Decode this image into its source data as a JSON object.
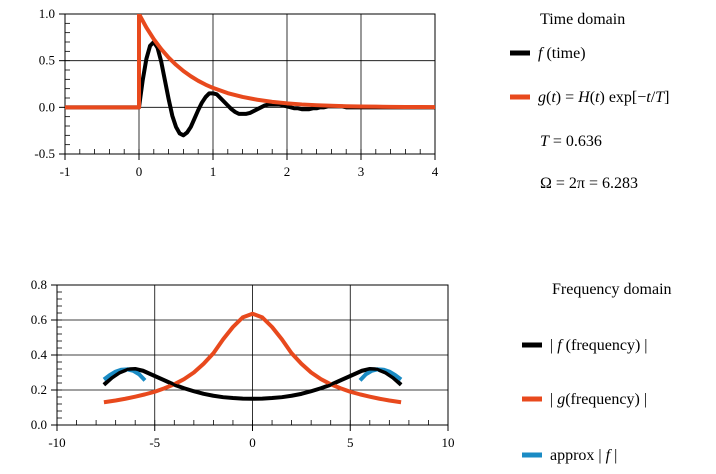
{
  "chart_data": [
    {
      "type": "line",
      "legend_title": "Time domain",
      "xlim": [
        -1,
        4
      ],
      "ylim": [
        -0.5,
        1.0
      ],
      "xticks": [
        -1,
        0,
        1,
        2,
        3,
        4
      ],
      "xtick_labels": [
        "-1",
        "0",
        "1",
        "2",
        "3",
        "4"
      ],
      "yticks": [
        -0.5,
        0.0,
        0.5,
        1.0
      ],
      "ytick_labels": [
        "-0.5",
        "0.0",
        "0.5",
        "1.0"
      ],
      "grid": true,
      "legend_position": "right",
      "parameters": {
        "T": 0.636,
        "Omega": 6.283
      },
      "param_labels": [
        "T = 0.636",
        "Ω = 2π = 6.283"
      ],
      "series": [
        {
          "name": "f (time)",
          "color": "#000000",
          "x": [
            -1,
            -0.5,
            0,
            0.05,
            0.1,
            0.15,
            0.2,
            0.25,
            0.3,
            0.35,
            0.4,
            0.45,
            0.5,
            0.55,
            0.6,
            0.65,
            0.7,
            0.75,
            0.8,
            0.85,
            0.9,
            0.95,
            1.0,
            1.05,
            1.1,
            1.15,
            1.2,
            1.25,
            1.3,
            1.35,
            1.4,
            1.45,
            1.5,
            1.55,
            1.6,
            1.65,
            1.7,
            1.75,
            1.8,
            1.85,
            1.9,
            1.95,
            2.0,
            2.05,
            2.1,
            2.15,
            2.2,
            2.25,
            2.3,
            2.35,
            2.4,
            2.45,
            2.5,
            2.55,
            2.6,
            2.65,
            2.7,
            2.75,
            2.8,
            2.85,
            2.9,
            2.95,
            3.0,
            3.1,
            3.2,
            3.3,
            3.4,
            3.5,
            3.6,
            3.7,
            3.8,
            3.9,
            4.0
          ],
          "y": [
            0,
            0,
            0,
            0.29,
            0.52,
            0.66,
            0.7,
            0.64,
            0.49,
            0.29,
            0.09,
            -0.09,
            -0.21,
            -0.28,
            -0.3,
            -0.27,
            -0.21,
            -0.12,
            -0.03,
            0.05,
            0.11,
            0.15,
            0.15,
            0.14,
            0.1,
            0.06,
            0.02,
            -0.02,
            -0.05,
            -0.07,
            -0.07,
            -0.07,
            -0.06,
            -0.04,
            -0.02,
            0.0,
            0.02,
            0.03,
            0.03,
            0.03,
            0.03,
            0.02,
            0.01,
            0.0,
            -0.01,
            -0.01,
            -0.02,
            -0.02,
            -0.02,
            -0.01,
            -0.01,
            0.0,
            0.0,
            0.01,
            0.01,
            0.01,
            0.01,
            0.01,
            0.0,
            0.0,
            0.0,
            0.0,
            0.0,
            0.0,
            0.0,
            0.0,
            0.0,
            0.0,
            0.0,
            0.0,
            0.0,
            0.0,
            0.0
          ]
        },
        {
          "name": "g(t) = H(t) exp[−t/T]",
          "color": "#e8491d",
          "x": [
            -1,
            -0.5,
            0,
            0,
            0.1,
            0.2,
            0.3,
            0.4,
            0.5,
            0.6,
            0.7,
            0.8,
            0.9,
            1.0,
            1.2,
            1.4,
            1.6,
            1.8,
            2.0,
            2.2,
            2.4,
            2.6,
            2.8,
            3.0,
            3.2,
            3.4,
            3.6,
            3.8,
            4.0
          ],
          "y": [
            0,
            0,
            0,
            1.0,
            0.855,
            0.73,
            0.624,
            0.533,
            0.456,
            0.389,
            0.333,
            0.284,
            0.243,
            0.208,
            0.152,
            0.111,
            0.081,
            0.059,
            0.043,
            0.031,
            0.023,
            0.017,
            0.012,
            0.009,
            0.007,
            0.005,
            0.004,
            0.003,
            0.002
          ]
        }
      ]
    },
    {
      "type": "line",
      "legend_title": "Frequency domain",
      "xlim": [
        -10,
        10
      ],
      "ylim": [
        0.0,
        0.8
      ],
      "xticks": [
        -10,
        -5,
        0,
        5,
        10
      ],
      "xtick_labels": [
        "-10",
        "-5",
        "0",
        "5",
        "10"
      ],
      "yticks": [
        0.0,
        0.2,
        0.4,
        0.6,
        0.8
      ],
      "ytick_labels": [
        "0.0",
        "0.2",
        "0.4",
        "0.6",
        "0.8"
      ],
      "grid": true,
      "legend_position": "right",
      "series": [
        {
          "name": "| f (frequency) |",
          "color": "#000000",
          "x": [
            -7.6,
            -7.2,
            -6.8,
            -6.4,
            -6.0,
            -5.6,
            -5.2,
            -4.8,
            -4.4,
            -4.0,
            -3.5,
            -3.0,
            -2.5,
            -2.0,
            -1.5,
            -1.0,
            -0.5,
            0,
            0.5,
            1.0,
            1.5,
            2.0,
            2.5,
            3.0,
            3.5,
            4.0,
            4.4,
            4.8,
            5.2,
            5.6,
            6.0,
            6.4,
            6.8,
            7.2,
            7.6
          ],
          "y": [
            0.23,
            0.27,
            0.3,
            0.318,
            0.32,
            0.31,
            0.29,
            0.27,
            0.25,
            0.23,
            0.21,
            0.193,
            0.178,
            0.167,
            0.159,
            0.154,
            0.151,
            0.15,
            0.151,
            0.154,
            0.159,
            0.167,
            0.178,
            0.193,
            0.21,
            0.23,
            0.25,
            0.27,
            0.29,
            0.31,
            0.32,
            0.318,
            0.3,
            0.27,
            0.23
          ]
        },
        {
          "name": "| g(frequency) |",
          "color": "#e8491d",
          "x": [
            -7.6,
            -7.0,
            -6.5,
            -6.0,
            -5.5,
            -5.0,
            -4.5,
            -4.0,
            -3.5,
            -3.0,
            -2.5,
            -2.0,
            -1.5,
            -1.0,
            -0.5,
            0,
            0.5,
            1.0,
            1.5,
            2.0,
            2.5,
            3.0,
            3.5,
            4.0,
            4.5,
            5.0,
            5.5,
            6.0,
            6.5,
            7.0,
            7.6
          ],
          "y": [
            0.13,
            0.14,
            0.15,
            0.162,
            0.175,
            0.19,
            0.21,
            0.233,
            0.262,
            0.3,
            0.35,
            0.41,
            0.49,
            0.56,
            0.615,
            0.636,
            0.615,
            0.56,
            0.49,
            0.41,
            0.35,
            0.3,
            0.262,
            0.233,
            0.21,
            0.19,
            0.175,
            0.162,
            0.15,
            0.14,
            0.13
          ]
        },
        {
          "name": "approx | f |",
          "color": "#1a8bc4",
          "x": [
            -7.6,
            -7.3,
            -7.0,
            -6.7,
            -6.4,
            -6.1,
            -5.8,
            -5.5,
            5.5,
            5.8,
            6.1,
            6.4,
            6.7,
            7.0,
            7.3,
            7.6
          ],
          "y": [
            0.26,
            0.285,
            0.305,
            0.316,
            0.318,
            0.31,
            0.29,
            0.255,
            0.255,
            0.29,
            0.31,
            0.318,
            0.316,
            0.305,
            0.285,
            0.26
          ]
        }
      ]
    }
  ]
}
